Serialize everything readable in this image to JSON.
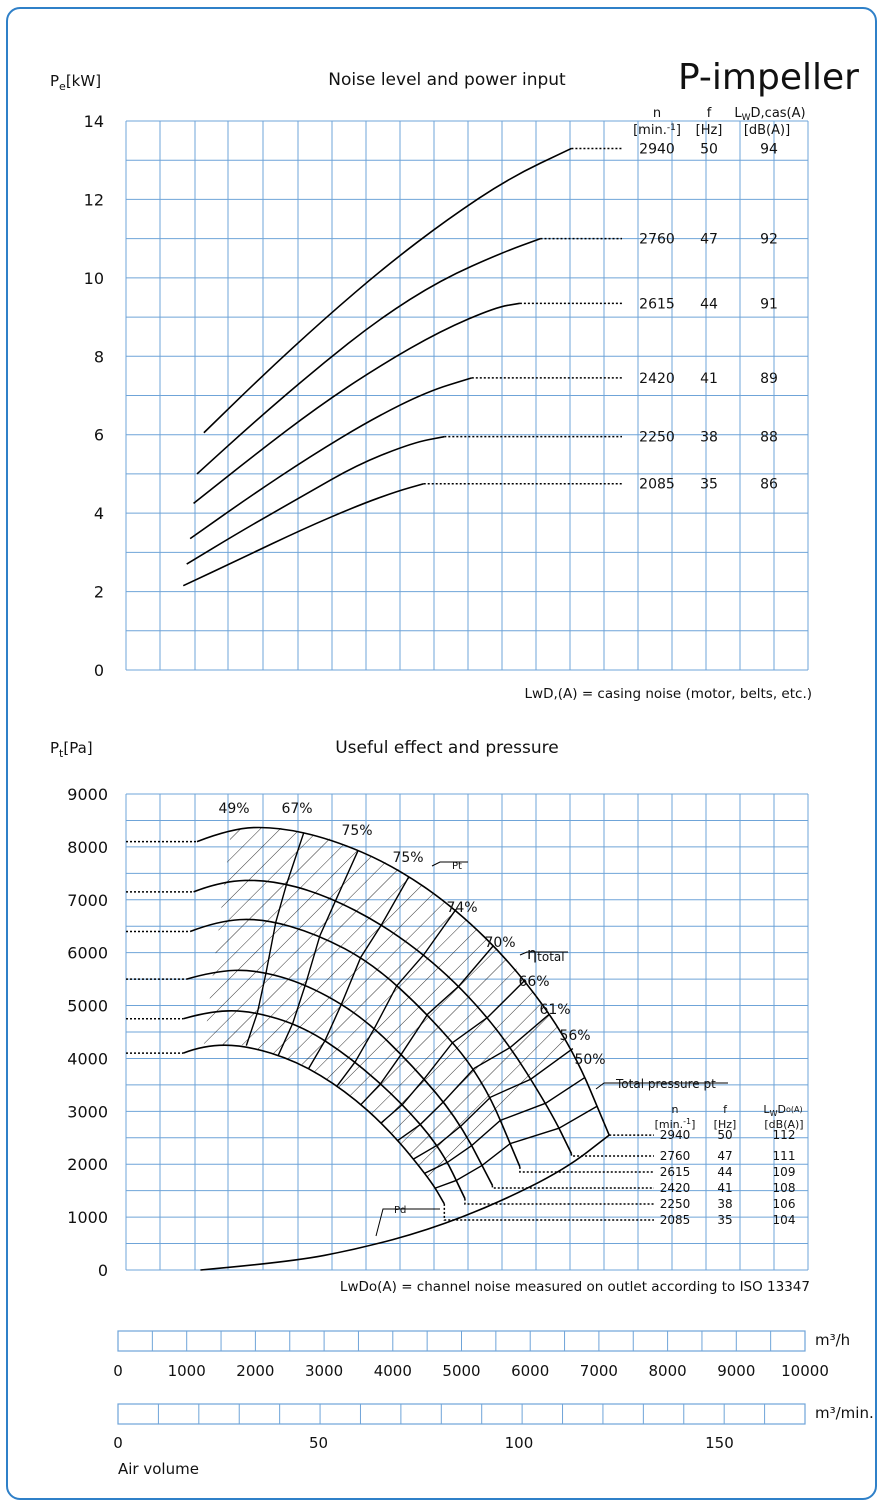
{
  "top_title": "P-impeller",
  "chart_data": [
    {
      "type": "line",
      "title": "Noise level and power input",
      "ylabel": "P",
      "ylabel_sub": "e",
      "ylabel_unit": "[kW]",
      "ylim": [
        0,
        14
      ],
      "yticks": [
        0,
        2,
        4,
        6,
        8,
        10,
        12,
        14
      ],
      "xunit": "m³/h",
      "xlim": [
        600,
        10000
      ],
      "footnote": "LwD,(A) = casing noise (motor, belts, etc.)",
      "table_headers": {
        "n": "n",
        "n_unit": "[min.",
        "n_exp": "-1",
        "n_close": "]",
        "f": "f",
        "f_unit": "[Hz]",
        "lw": "L",
        "lw_sub": "W",
        "lw_rest": "D,cas(A)",
        "lw_unit": "[dB(A)]"
      },
      "series": [
        {
          "n": "2940",
          "f": "50",
          "lw": "94",
          "x": [
            1250,
            2100,
            3000,
            3900,
            4800,
            5700,
            6600
          ],
          "y": [
            6.05,
            7.5,
            8.95,
            10.3,
            11.5,
            12.55,
            13.3
          ]
        },
        {
          "n": "2760",
          "f": "47",
          "lw": "92",
          "x": [
            1150,
            2000,
            2900,
            3800,
            4700,
            5600,
            6150
          ],
          "y": [
            5.0,
            6.35,
            7.7,
            8.95,
            9.95,
            10.65,
            11.0
          ]
        },
        {
          "n": "2615",
          "f": "44",
          "lw": "91",
          "x": [
            1100,
            2000,
            2900,
            3800,
            4700,
            5500,
            5850
          ],
          "y": [
            4.25,
            5.5,
            6.7,
            7.75,
            8.65,
            9.25,
            9.35
          ]
        },
        {
          "n": "2420",
          "f": "41",
          "lw": "89",
          "x": [
            1050,
            1900,
            2800,
            3700,
            4500,
            5150
          ],
          "y": [
            3.35,
            4.4,
            5.45,
            6.4,
            7.1,
            7.45
          ]
        },
        {
          "n": "2250",
          "f": "38",
          "lw": "88",
          "x": [
            1000,
            1800,
            2700,
            3500,
            4300,
            4750
          ],
          "y": [
            2.7,
            3.55,
            4.45,
            5.25,
            5.8,
            5.95
          ]
        },
        {
          "n": "2085",
          "f": "35",
          "lw": "86",
          "x": [
            950,
            1800,
            2700,
            3500,
            4050,
            4450
          ],
          "y": [
            2.15,
            2.85,
            3.6,
            4.2,
            4.55,
            4.75
          ]
        }
      ]
    },
    {
      "type": "line",
      "title": "Useful effect and pressure",
      "ylabel": "P",
      "ylabel_sub": "t",
      "ylabel_unit": "[Pa]",
      "ylim": [
        0,
        9000
      ],
      "yticks": [
        0,
        1000,
        2000,
        3000,
        4000,
        5000,
        6000,
        7000,
        8000,
        9000
      ],
      "xunit": "m³/h",
      "xlim": [
        600,
        10000
      ],
      "footnote": "LwDo(A) = channel noise measured on outlet according to ISO 13347",
      "efficiency_labels": [
        "49%",
        "67%",
        "75%",
        "75%",
        "74%",
        "70%",
        "66%",
        "61%",
        "56%",
        "50%"
      ],
      "annotations": {
        "pt": "Pt",
        "pd": "Pd",
        "eta": "η",
        "eta_sub": "total",
        "total_pressure": "Total pressure pt"
      },
      "table_headers": {
        "n": "n",
        "n_unit": "[min.",
        "n_exp": "-1",
        "n_close": "]",
        "f": "f",
        "f_unit": "[Hz]",
        "lw": "L",
        "lw_sub": "W",
        "lw_rest": "D",
        "lw_sub2": "o(A)",
        "lw_unit": "[dB(A)]"
      },
      "series": [
        {
          "n": "2940",
          "f": "50",
          "lw": "112",
          "x": [
            1150,
            1650,
            2300,
            3100,
            4000,
            4900,
            5800,
            6600,
            7150
          ],
          "y": [
            8100,
            8350,
            8380,
            8150,
            7650,
            6850,
            5700,
            4250,
            2550
          ]
        },
        {
          "n": "2760",
          "f": "47",
          "lw": "111",
          "x": [
            1100,
            1500,
            2200,
            3000,
            3900,
            4800,
            5600,
            6300,
            6600
          ],
          "y": [
            7150,
            7350,
            7380,
            7100,
            6500,
            5600,
            4450,
            3000,
            2200
          ]
        },
        {
          "n": "2615",
          "f": "44",
          "lw": "109",
          "x": [
            1050,
            1450,
            2100,
            2900,
            3700,
            4500,
            5300,
            5850
          ],
          "y": [
            6400,
            6600,
            6650,
            6350,
            5800,
            4850,
            3650,
            1950
          ]
        },
        {
          "n": "2420",
          "f": "41",
          "lw": "108",
          "x": [
            1000,
            1400,
            2000,
            2750,
            3550,
            4300,
            4950,
            5450
          ],
          "y": [
            5500,
            5650,
            5680,
            5400,
            4800,
            3850,
            2850,
            1600
          ]
        },
        {
          "n": "2250",
          "f": "38",
          "lw": "106",
          "x": [
            950,
            1350,
            1950,
            2700,
            3400,
            4100,
            4700,
            5050
          ],
          "y": [
            4750,
            4900,
            4900,
            4600,
            4000,
            3200,
            2300,
            1350
          ]
        },
        {
          "n": "2085",
          "f": "35",
          "lw": "104",
          "x": [
            950,
            1250,
            1850,
            2600,
            3300,
            3950,
            4550,
            4750
          ],
          "y": [
            4100,
            4250,
            4250,
            3950,
            3400,
            2650,
            1700,
            1250
          ]
        }
      ],
      "pd_curve": {
        "x": [
          1200,
          2500,
          3500,
          4500,
          5500,
          6500,
          7150
        ],
        "y": [
          0,
          150,
          400,
          750,
          1250,
          1900,
          2550
        ]
      }
    }
  ],
  "scales": {
    "m3h": {
      "unit": "m³/h",
      "ticks": [
        "0",
        "1000",
        "2000",
        "3000",
        "4000",
        "5000",
        "6000",
        "7000",
        "8000",
        "9000",
        "10000"
      ]
    },
    "m3min": {
      "unit": "m³/min.",
      "ticks": [
        "0",
        "50",
        "100",
        "150"
      ]
    },
    "air_volume": "Air volume"
  }
}
